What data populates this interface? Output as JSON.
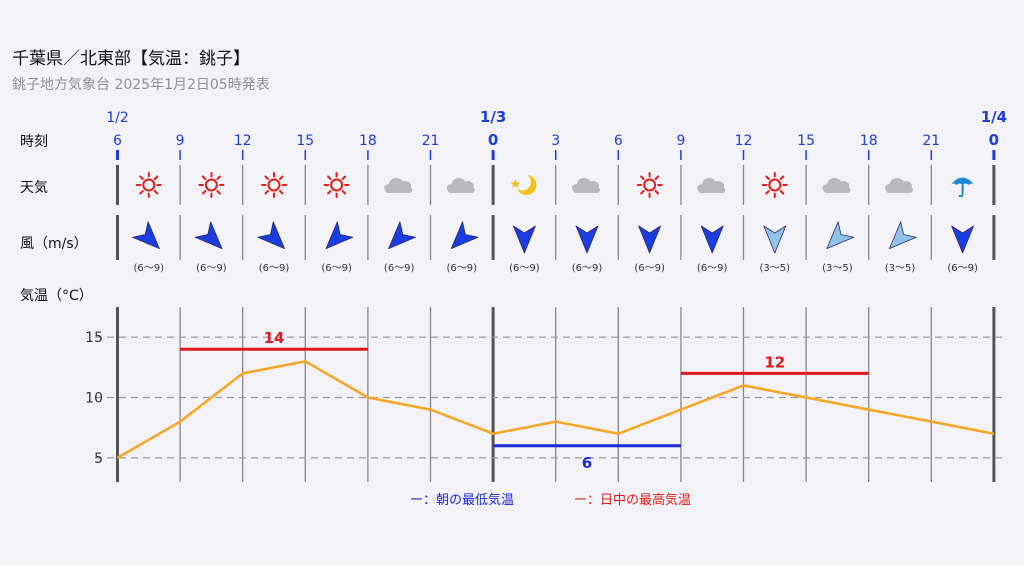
{
  "header": {
    "title": "千葉県／北東部【気温：銚子】",
    "subtitle": "銚子地方気象台 2025年1月2日05時発表"
  },
  "row_labels": {
    "time": "時刻",
    "weather": "天気",
    "wind": "風（m/s）",
    "temp": "気温（°C）"
  },
  "legend": {
    "min": "ー：朝の最低気温",
    "max": "ー：日中の最高気温"
  },
  "colors": {
    "max": "#e01a1a",
    "min": "#1a2ad6",
    "line": "#f5a623",
    "tick": "#1f3fd1"
  },
  "chart_data": {
    "type": "line",
    "dates": [
      {
        "label": "1/2",
        "at_index": 0
      },
      {
        "label": "1/3",
        "at_index": 6
      },
      {
        "label": "1/4",
        "at_index": 14
      }
    ],
    "hours": [
      "6",
      "9",
      "12",
      "15",
      "18",
      "21",
      "0",
      "3",
      "6",
      "9",
      "12",
      "15",
      "18",
      "21",
      "0"
    ],
    "weather": [
      "sun",
      "sun",
      "sun",
      "sun",
      "cloud",
      "cloud",
      "moon",
      "cloud",
      "sun",
      "cloud",
      "sun",
      "cloud",
      "cloud",
      "umbrella"
    ],
    "wind": [
      {
        "dir": 135,
        "speed": "(6〜9)",
        "strong": true
      },
      {
        "dir": 135,
        "speed": "(6〜9)",
        "strong": true
      },
      {
        "dir": 135,
        "speed": "(6〜9)",
        "strong": true
      },
      {
        "dir": 225,
        "speed": "(6〜9)",
        "strong": true
      },
      {
        "dir": 225,
        "speed": "(6〜9)",
        "strong": true
      },
      {
        "dir": 225,
        "speed": "(6〜9)",
        "strong": true
      },
      {
        "dir": 180,
        "speed": "(6〜9)",
        "strong": true
      },
      {
        "dir": 180,
        "speed": "(6〜9)",
        "strong": true
      },
      {
        "dir": 180,
        "speed": "(6〜9)",
        "strong": true
      },
      {
        "dir": 180,
        "speed": "(6〜9)",
        "strong": true
      },
      {
        "dir": 180,
        "speed": "(3〜5)",
        "strong": false
      },
      {
        "dir": 225,
        "speed": "(3〜5)",
        "strong": false
      },
      {
        "dir": 225,
        "speed": "(3〜5)",
        "strong": false
      },
      {
        "dir": 180,
        "speed": "(6〜9)",
        "strong": true
      }
    ],
    "temps": [
      5,
      8,
      12,
      13,
      10,
      9,
      7,
      8,
      7,
      9,
      11,
      10,
      9,
      8,
      7
    ],
    "ylim": [
      3,
      17.5
    ],
    "yticks": [
      5,
      10,
      15
    ],
    "max_temps": [
      {
        "value": 14,
        "label": "14",
        "from_index": 1,
        "to_index": 4
      },
      {
        "value": 12,
        "label": "12",
        "from_index": 9,
        "to_index": 12
      }
    ],
    "min_temps": [
      {
        "value": 6,
        "label": "6",
        "from_index": 6,
        "to_index": 9
      }
    ]
  }
}
